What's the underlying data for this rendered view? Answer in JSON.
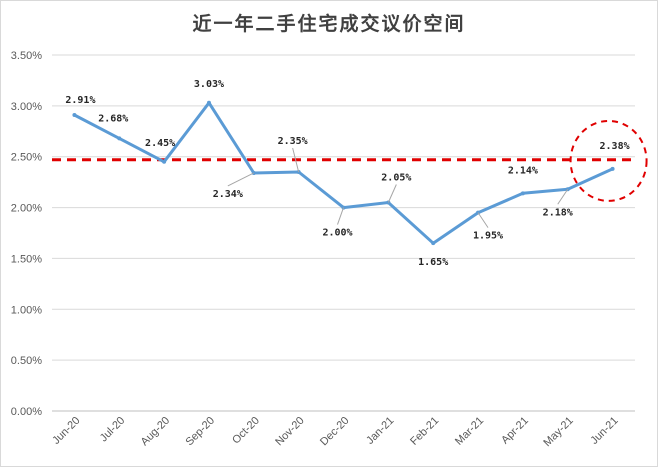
{
  "chart_data": {
    "type": "line",
    "title": "近一年二手住宅成交议价空间",
    "categories": [
      "Jun-20",
      "Jul-20",
      "Aug-20",
      "Sep-20",
      "Oct-20",
      "Nov-20",
      "Dec-20",
      "Jan-21",
      "Feb-21",
      "Mar-21",
      "Apr-21",
      "May-21",
      "Jun-21"
    ],
    "values": [
      2.91,
      2.68,
      2.45,
      3.03,
      2.34,
      2.35,
      2.0,
      2.05,
      1.65,
      1.95,
      2.14,
      2.18,
      2.38
    ],
    "data_labels": [
      "2.91%",
      "2.68%",
      "2.45%",
      "3.03%",
      "2.34%",
      "2.35%",
      "2.00%",
      "2.05%",
      "1.65%",
      "1.95%",
      "2.14%",
      "2.18%",
      "2.38%"
    ],
    "y_ticks": [
      "0.00%",
      "0.50%",
      "1.00%",
      "1.50%",
      "2.00%",
      "2.50%",
      "3.00%",
      "3.50%"
    ],
    "ylim": [
      0,
      3.5
    ],
    "y_step": 0.5,
    "reference_line": 2.47,
    "grid": true,
    "colors": {
      "line": "#5b9bd5",
      "reference": "#e00000",
      "grid": "#d9d9d9",
      "highlight": "#e00000"
    }
  }
}
